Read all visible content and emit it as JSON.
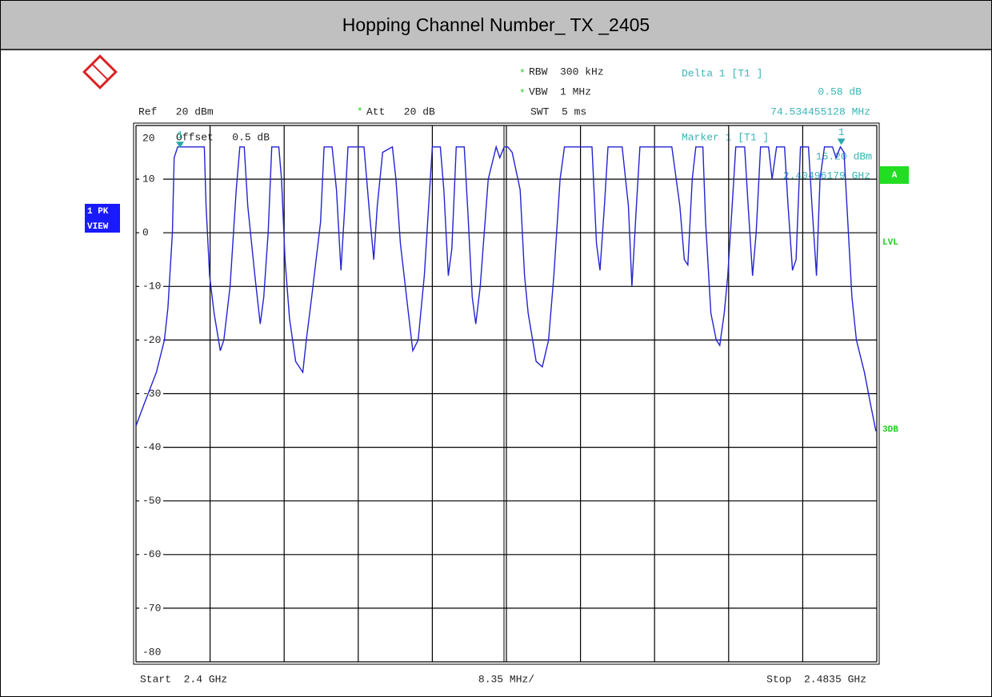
{
  "chart_data": {
    "type": "line",
    "title": "Hopping Channel Number_ TX _2405",
    "color": "#2323d2",
    "grid": true,
    "ylim": [
      -80,
      20
    ],
    "yticks": [
      20,
      10,
      0,
      -10,
      -20,
      -30,
      -40,
      -50,
      -60,
      -70,
      -80
    ],
    "xlim": [
      2.4,
      2.4835
    ],
    "start_label": "Start  2.4 GHz",
    "span_label": "8.35 MHz/",
    "stop_label": "Stop  2.4835 GHz",
    "ref": "Ref   20 dBm",
    "att_flag": "*",
    "att": "Att   20 dB",
    "rbw_flag": "*",
    "rbw": "RBW  300 kHz",
    "vbw_flag": "*",
    "vbw": "VBW  1 MHz",
    "swt": "SWT  5 ms",
    "offset": "Offset   0.5 dB",
    "delta_title": "Delta 1 [T1 ]",
    "delta_level": "0.58 dB",
    "delta_freq": "74.534455128 MHz",
    "marker_title": "Marker 1 [T1 ]",
    "marker_level": "15.20 dBm",
    "marker_freq": "2.40496179 GHz",
    "trace_mode": "1 PK",
    "trace_view": "VIEW",
    "screen": "A",
    "side_lvl": "LVL",
    "side_3db": "3DB",
    "markers": [
      {
        "label": "1",
        "x": 2.40496,
        "y": 15.2
      },
      {
        "label": "1",
        "x": 2.4795,
        "y": 15.78
      }
    ],
    "x": [
      2.4,
      2.4009,
      2.4023,
      2.4032,
      2.4036,
      2.4041,
      2.4043,
      2.4047,
      2.4052,
      2.4059,
      2.4068,
      2.4077,
      2.4079,
      2.4083,
      2.4088,
      2.4095,
      2.4099,
      2.4106,
      2.4113,
      2.4117,
      2.4122,
      2.4126,
      2.4134,
      2.414,
      2.4144,
      2.4149,
      2.4153,
      2.4161,
      2.4164,
      2.4168,
      2.4173,
      2.418,
      2.4188,
      2.4192,
      2.4198,
      2.4208,
      2.4212,
      2.4221,
      2.4226,
      2.4231,
      2.4235,
      2.4239,
      2.4248,
      2.4257,
      2.4263,
      2.4268,
      2.4272,
      2.4278,
      2.4289,
      2.4293,
      2.4298,
      2.4307,
      2.4312,
      2.4318,
      2.4325,
      2.4334,
      2.4343,
      2.4347,
      2.4352,
      2.4356,
      2.4361,
      2.437,
      2.4374,
      2.4379,
      2.4383,
      2.4388,
      2.4397,
      2.4406,
      2.441,
      2.4415,
      2.4419,
      2.4424,
      2.4433,
      2.4438,
      2.4442,
      2.4451,
      2.4458,
      2.4465,
      2.4471,
      2.4478,
      2.4483,
      2.4492,
      2.4501,
      2.4505,
      2.4514,
      2.4519,
      2.4523,
      2.4528,
      2.4532,
      2.4541,
      2.4548,
      2.4555,
      2.4559,
      2.4564,
      2.4568,
      2.4577,
      2.4586,
      2.4595,
      2.4604,
      2.4613,
      2.4618,
      2.4622,
      2.4627,
      2.4631,
      2.4639,
      2.4642,
      2.4648,
      2.4654,
      2.4658,
      2.4663,
      2.4667,
      2.4672,
      2.4676,
      2.4686,
      2.469,
      2.4695,
      2.4699,
      2.4704,
      2.4713,
      2.4717,
      2.4722,
      2.4726,
      2.4731,
      2.4735,
      2.474,
      2.4744,
      2.4749,
      2.4758,
      2.4762,
      2.4767,
      2.4771,
      2.4776,
      2.4785,
      2.4789,
      2.4794,
      2.4798,
      2.4803,
      2.4807,
      2.4812,
      2.4821,
      2.4828,
      2.4834
    ],
    "values": [
      -36,
      -32,
      -26,
      -20,
      -14,
      0,
      14,
      16,
      16,
      16,
      16,
      16,
      5,
      -8,
      -15,
      -22,
      -20,
      -10,
      8,
      16,
      16,
      5,
      -8,
      -17,
      -12,
      0,
      16,
      16,
      10,
      -5,
      -16,
      -24,
      -26,
      -20,
      -12,
      2,
      16,
      16,
      8,
      -7,
      4,
      16,
      16,
      16,
      4,
      -5,
      5,
      15,
      16,
      10,
      -2,
      -15,
      -22,
      -20,
      -8,
      16,
      16,
      8,
      -8,
      -3,
      16,
      16,
      4,
      -12,
      -17,
      -10,
      10,
      16,
      14,
      16,
      16,
      15,
      8,
      -8,
      -15,
      -24,
      -25,
      -20,
      -8,
      10,
      16,
      16,
      16,
      16,
      16,
      -2,
      -7,
      5,
      16,
      16,
      16,
      5,
      -10,
      5,
      16,
      16,
      16,
      16,
      16,
      5,
      -5,
      -6,
      10,
      16,
      16,
      2,
      -15,
      -20,
      -21,
      -15,
      -8,
      5,
      16,
      16,
      5,
      -8,
      0,
      16,
      16,
      10,
      16,
      16,
      16,
      5,
      -7,
      -5,
      16,
      16,
      5,
      -8,
      10,
      16,
      16,
      14,
      16,
      15,
      0,
      -12,
      -20,
      -26,
      -32,
      -37
    ]
  }
}
